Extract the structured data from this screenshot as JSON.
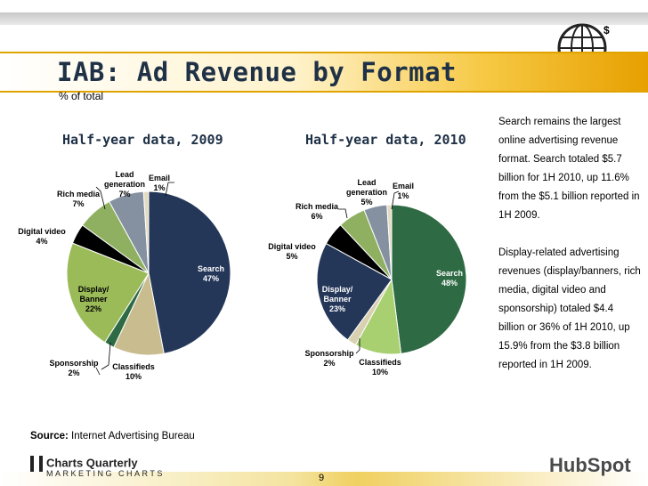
{
  "header": {
    "title": "IAB: Ad Revenue by Format",
    "subtitle": "% of total"
  },
  "chart_titles": [
    "Half-year data, 2009",
    "Half-year data, 2010"
  ],
  "chart_data": [
    {
      "type": "pie",
      "title": "Half-year data, 2009",
      "categories": [
        "Search",
        "Classifieds",
        "Sponsorship",
        "Display/ Banner",
        "Digital video",
        "Rich media",
        "Lead generation",
        "Email"
      ],
      "values": [
        47,
        10,
        2,
        22,
        4,
        7,
        7,
        1
      ],
      "label_text": [
        "47%",
        "10%",
        "2%",
        "22%",
        "4%",
        "7%",
        "7%",
        "1%"
      ],
      "colors": [
        "#253759",
        "#c9bc8f",
        "#2e6a43",
        "#9bbb59",
        "#000000",
        "#8fb060",
        "#8590a0",
        "#e4dcc0"
      ]
    },
    {
      "type": "pie",
      "title": "Half-year data, 2010",
      "categories": [
        "Search",
        "Classifieds",
        "Sponsorship",
        "Display/ Banner",
        "Digital video",
        "Rich media",
        "Lead generation",
        "Email"
      ],
      "values": [
        48,
        10,
        2,
        23,
        5,
        6,
        5,
        1
      ],
      "label_text": [
        "48%",
        "10%",
        "2%",
        "23%",
        "5%",
        "6%",
        "5%",
        "1%"
      ],
      "colors": [
        "#2e6a43",
        "#a8d070",
        "#d8d0b0",
        "#253759",
        "#000000",
        "#8fb060",
        "#8590a0",
        "#e4dcc0"
      ]
    }
  ],
  "side_text": [
    "Search remains the largest online advertising revenue format. Search totaled $5.7 billion for 1H 2010, up 11.6% from the $5.1 billion reported in 1H 2009.",
    "Display-related advertising revenues (display/banners, rich media, digital video and sponsorship) totaled $4.4 billion or 36% of 1H 2010, up 15.9% from the $3.8 billion reported in 1H 2009."
  ],
  "source": {
    "label": "Source:",
    "text": "Internet Advertising Bureau"
  },
  "footer": {
    "logo_main": "Charts Quarterly",
    "logo_sub": "MARKETING CHARTS",
    "page_number": "9",
    "brand": "HubSpot"
  }
}
